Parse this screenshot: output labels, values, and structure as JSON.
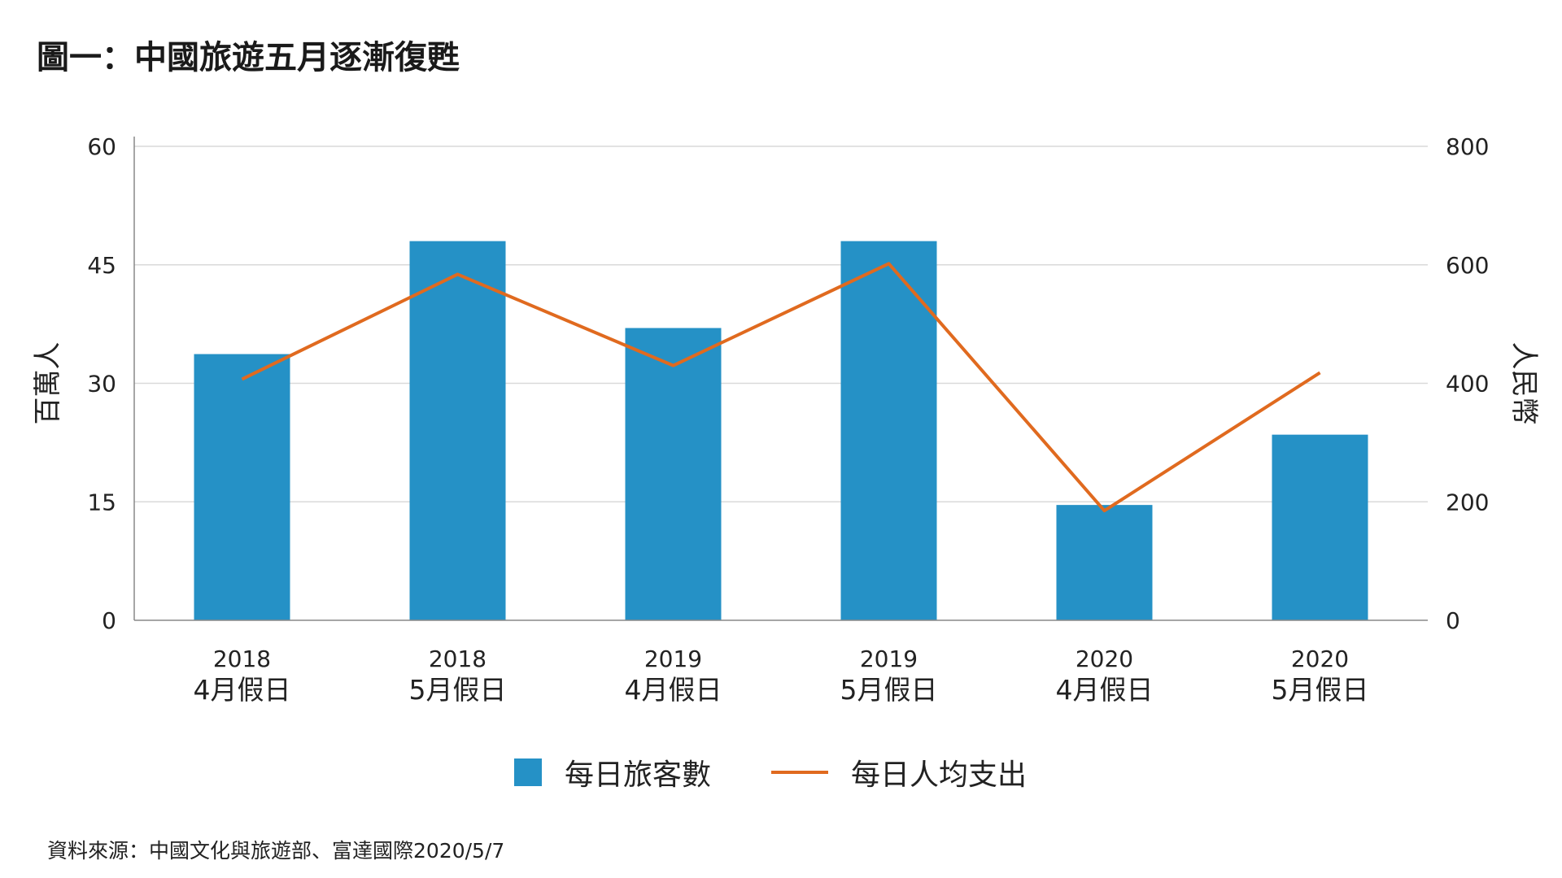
{
  "title": "圖一：中國旅遊五月逐漸復甦",
  "source": "資料來源：中國文化與旅遊部、富達國際2020/5/7",
  "colors": {
    "bars": "#2591C6",
    "line": "#E06A1F",
    "grid": "#D9D9D9",
    "axis": "#888888"
  },
  "chart_data": {
    "type": "bar",
    "categories": [
      [
        "2018",
        "4月假日"
      ],
      [
        "2018",
        "5月假日"
      ],
      [
        "2019",
        "4月假日"
      ],
      [
        "2019",
        "5月假日"
      ],
      [
        "2020",
        "4月假日"
      ],
      [
        "2020",
        "5月假日"
      ]
    ],
    "series": [
      {
        "name": "每日旅客數",
        "type": "bar",
        "axis": "left",
        "values": [
          33.7,
          48,
          37,
          48,
          14.6,
          23.5
        ]
      },
      {
        "name": "每日人均支出",
        "type": "line",
        "axis": "right",
        "values": [
          407,
          584,
          430,
          602,
          185,
          418
        ]
      }
    ],
    "ylabel_left": "百萬人",
    "ylabel_right": "人民幣",
    "ylim_left": [
      0,
      60
    ],
    "ylim_right": [
      0,
      800
    ],
    "yticks_left": [
      "0",
      "15",
      "30",
      "45",
      "60"
    ],
    "yticks_right": [
      "0",
      "200",
      "400",
      "600",
      "800"
    ],
    "grid": true,
    "legend": "bottom"
  }
}
